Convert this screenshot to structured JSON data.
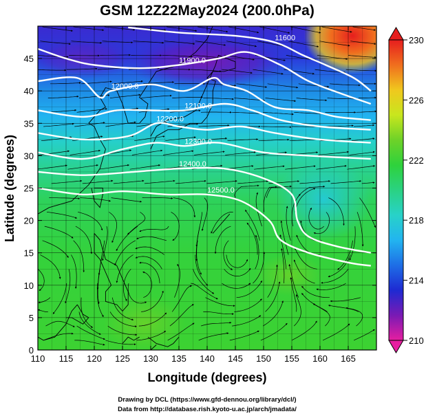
{
  "figure": {
    "title": "GSM 12Z22May2024 (200.0hPa)",
    "xlabel": "Longitude (degrees)",
    "ylabel": "Latitude  (degrees)",
    "credit_line1": "Drawing by DCL (https://www.gfd-dennou.org/library/dcl/)",
    "credit_line2": "Data from http://database.rish.kyoto-u.ac.jp/arch/jmadata/"
  },
  "map_data": {
    "type": "heatmap",
    "xlim": [
      110,
      170
    ],
    "ylim": [
      0,
      50
    ],
    "x_ticks": [
      "110",
      "115",
      "120",
      "125",
      "130",
      "135",
      "140",
      "145",
      "150",
      "155",
      "160",
      "165"
    ],
    "y_ticks": [
      "0",
      "5",
      "10",
      "15",
      "20",
      "25",
      "30",
      "35",
      "40",
      "45"
    ],
    "grid": true,
    "colorbar": {
      "min": 210,
      "max": 230,
      "ticks": [
        "210",
        "214",
        "218",
        "222",
        "226",
        "230"
      ],
      "colors": [
        "#e61ea0",
        "#7a1ab4",
        "#1e2ad2",
        "#1e6ee6",
        "#22b4f0",
        "#28d2c8",
        "#2ad282",
        "#2ed23c",
        "#6ed228",
        "#c8e61e",
        "#f0c81e",
        "#f06e1e",
        "#e61e1e"
      ]
    },
    "contour_labels": [
      "11600",
      "11900.0",
      "12000.0",
      "12100.0",
      "12200.0",
      "12300.0",
      "12400.0",
      "12500.0"
    ],
    "contours": [
      {
        "label": "11600",
        "points": [
          [
            126,
            49.8
          ],
          [
            135,
            49
          ],
          [
            145,
            48.5
          ],
          [
            152,
            47.5
          ],
          [
            157,
            45.5
          ],
          [
            161,
            44
          ],
          [
            166,
            42
          ],
          [
            169,
            40
          ]
        ]
      },
      {
        "label": "11900.0",
        "points": [
          [
            110,
            46.5
          ],
          [
            115,
            45
          ],
          [
            120,
            44
          ],
          [
            128,
            43.5
          ],
          [
            135,
            44
          ],
          [
            142,
            45
          ],
          [
            147,
            46
          ],
          [
            153,
            44
          ],
          [
            158,
            41.5
          ],
          [
            164,
            39.5
          ],
          [
            169,
            38
          ]
        ]
      },
      {
        "label": "12000.0",
        "points": [
          [
            110,
            41.5
          ],
          [
            117,
            42
          ],
          [
            121,
            39
          ],
          [
            123,
            40
          ],
          [
            130,
            41
          ],
          [
            136,
            40
          ],
          [
            141,
            42
          ],
          [
            143,
            41
          ],
          [
            147,
            40
          ],
          [
            152,
            37.5
          ],
          [
            158,
            37
          ],
          [
            163,
            36
          ],
          [
            169,
            35.5
          ]
        ]
      },
      {
        "label": "12100.0",
        "points": [
          [
            110,
            37
          ],
          [
            118,
            36
          ],
          [
            124,
            37
          ],
          [
            130,
            37
          ],
          [
            136,
            37
          ],
          [
            143,
            38
          ],
          [
            148,
            37
          ],
          [
            153,
            35.5
          ],
          [
            160,
            34.5
          ],
          [
            169,
            34
          ]
        ]
      },
      {
        "label": "12200.0",
        "points": [
          [
            110,
            33.5
          ],
          [
            118,
            32.5
          ],
          [
            126,
            33
          ],
          [
            131,
            35
          ],
          [
            135,
            34.5
          ],
          [
            140,
            34
          ],
          [
            146,
            34.5
          ],
          [
            152,
            33.5
          ],
          [
            160,
            32.5
          ],
          [
            169,
            32
          ]
        ]
      },
      {
        "label": "12300.0",
        "points": [
          [
            110,
            30.5
          ],
          [
            118,
            29.5
          ],
          [
            125,
            31
          ],
          [
            131,
            32
          ],
          [
            136,
            31.5
          ],
          [
            142,
            32
          ],
          [
            150,
            30.5
          ],
          [
            158,
            30
          ],
          [
            169,
            29.5
          ]
        ]
      },
      {
        "label": "12400.0",
        "points": [
          [
            110,
            27.5
          ],
          [
            118,
            27
          ],
          [
            127,
            27.5
          ],
          [
            135,
            28
          ],
          [
            143,
            28
          ],
          [
            150,
            26.5
          ],
          [
            155,
            24
          ],
          [
            156,
            20
          ],
          [
            158,
            17.5
          ],
          [
            163,
            16
          ],
          [
            169,
            15
          ]
        ]
      },
      {
        "label": "12500.0",
        "points": [
          [
            110,
            25
          ],
          [
            118,
            24
          ],
          [
            125,
            24.5
          ],
          [
            133,
            24
          ],
          [
            140,
            24
          ],
          [
            146,
            23
          ],
          [
            151,
            20
          ],
          [
            153,
            17
          ],
          [
            158,
            15
          ],
          [
            165,
            13.5
          ],
          [
            169,
            13
          ]
        ]
      }
    ]
  }
}
